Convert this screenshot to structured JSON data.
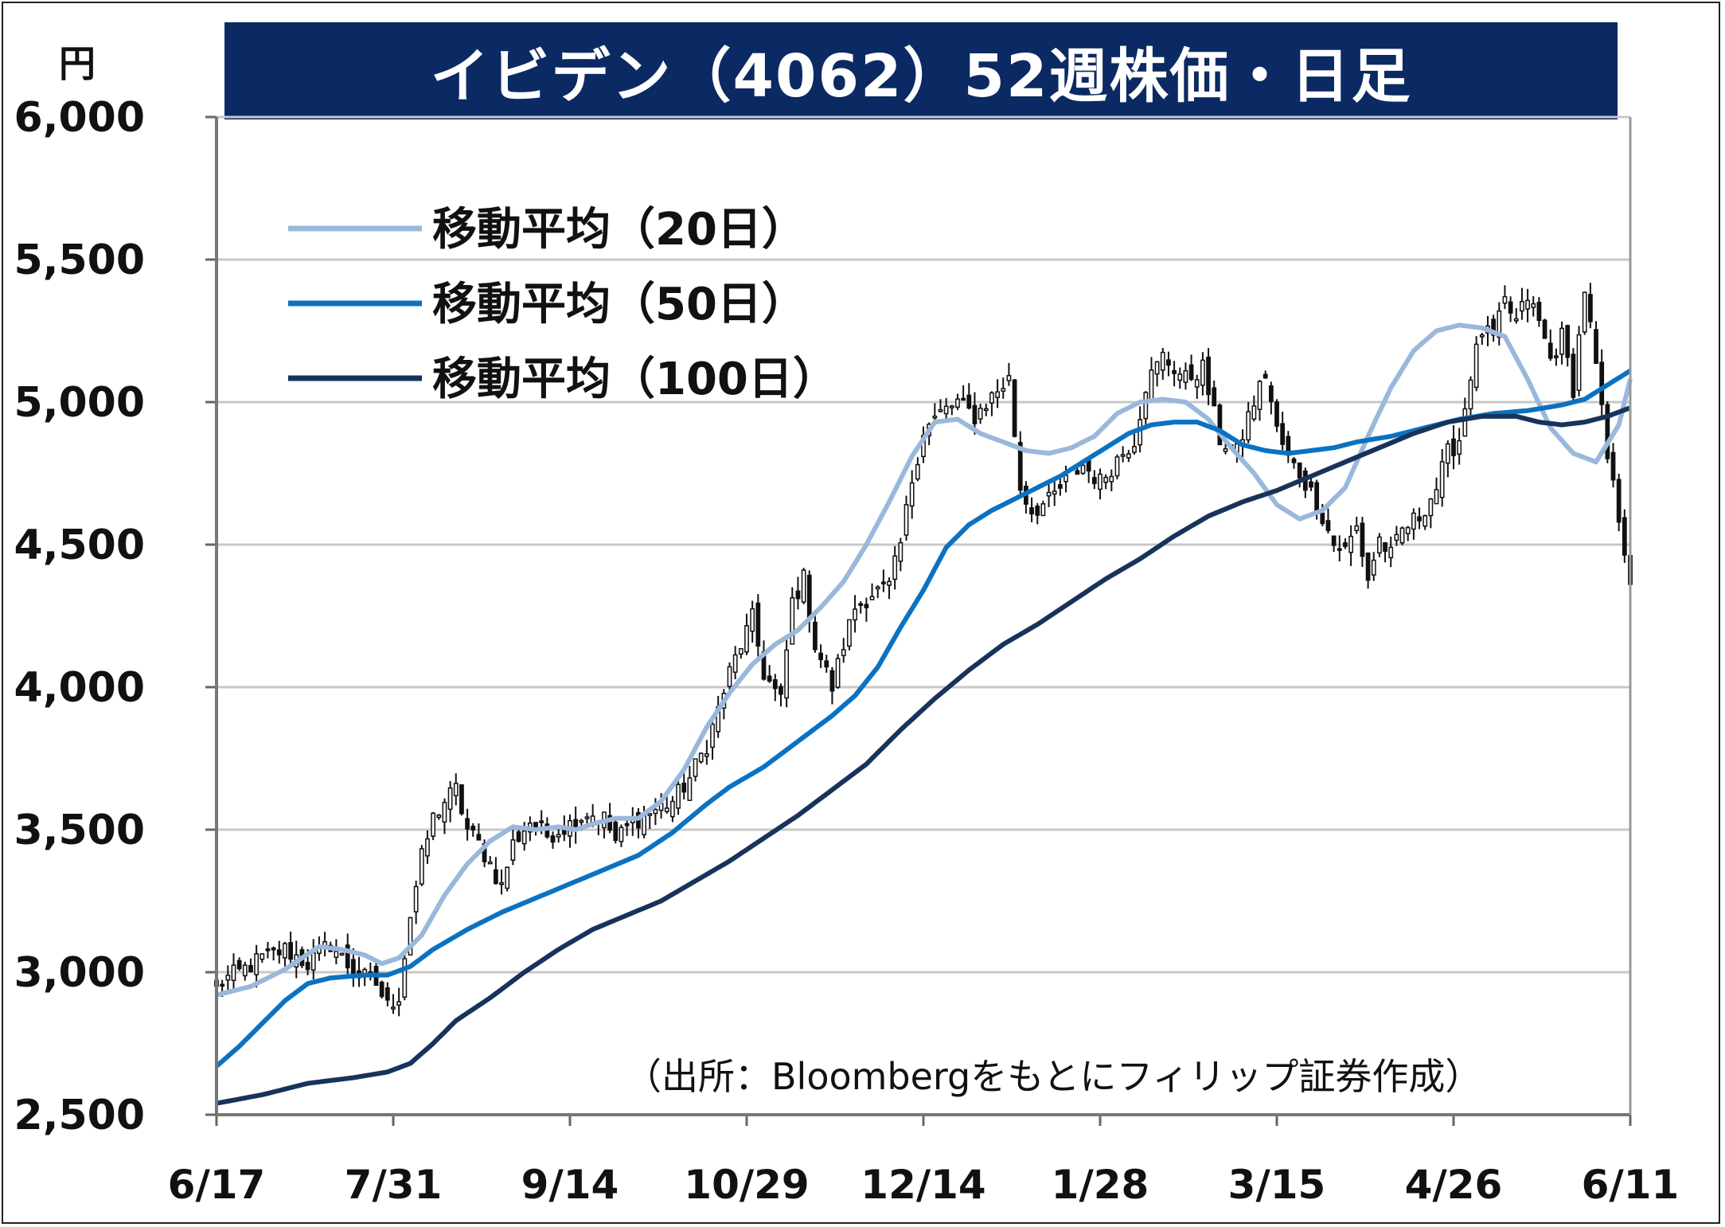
{
  "header": {
    "title": "イビデン（4062）52週株価・日足",
    "unit": "円"
  },
  "source": "（出所：Bloombergをもとにフィリップ証券作成）",
  "colors": {
    "title_bg": "#0b2a63",
    "ma20": "#9ab8dc",
    "ma50": "#0b72c2",
    "ma100": "#17335c",
    "grid": "#c8c8c8"
  },
  "chart_data": {
    "type": "candlestick",
    "ylim": [
      2500,
      6000
    ],
    "yticks": [
      2500,
      3000,
      3500,
      4000,
      4500,
      5000,
      5500,
      6000
    ],
    "ytick_labels": [
      "2,500",
      "3,000",
      "3,500",
      "4,000",
      "4,500",
      "5,000",
      "5,500",
      "6,000"
    ],
    "xticks": [
      {
        "label": "6/17",
        "index": 0
      },
      {
        "label": "7/31",
        "index": 31
      },
      {
        "label": "9/14",
        "index": 62
      },
      {
        "label": "10/29",
        "index": 93
      },
      {
        "label": "12/14",
        "index": 124
      },
      {
        "label": "1/28",
        "index": 155
      },
      {
        "label": "3/15",
        "index": 186
      },
      {
        "label": "4/26",
        "index": 217
      },
      {
        "label": "6/11",
        "index": 248
      }
    ],
    "n_days": 249,
    "legend": [
      {
        "key": "ma20",
        "label": "移動平均（20日）"
      },
      {
        "key": "ma50",
        "label": "移動平均（50日）"
      },
      {
        "key": "ma100",
        "label": "移動平均（100日）"
      }
    ],
    "close_anchors": [
      [
        0,
        2960
      ],
      [
        4,
        3000
      ],
      [
        8,
        3050
      ],
      [
        12,
        3080
      ],
      [
        16,
        3030
      ],
      [
        20,
        3100
      ],
      [
        24,
        3000
      ],
      [
        28,
        2960
      ],
      [
        30,
        2880
      ],
      [
        32,
        2920
      ],
      [
        34,
        3200
      ],
      [
        36,
        3400
      ],
      [
        38,
        3540
      ],
      [
        40,
        3600
      ],
      [
        42,
        3640
      ],
      [
        44,
        3500
      ],
      [
        46,
        3450
      ],
      [
        48,
        3380
      ],
      [
        50,
        3300
      ],
      [
        52,
        3450
      ],
      [
        55,
        3530
      ],
      [
        58,
        3480
      ],
      [
        62,
        3520
      ],
      [
        65,
        3560
      ],
      [
        68,
        3540
      ],
      [
        70,
        3460
      ],
      [
        73,
        3530
      ],
      [
        76,
        3560
      ],
      [
        80,
        3600
      ],
      [
        83,
        3680
      ],
      [
        86,
        3800
      ],
      [
        88,
        3920
      ],
      [
        90,
        4050
      ],
      [
        92,
        4150
      ],
      [
        94,
        4240
      ],
      [
        96,
        4050
      ],
      [
        99,
        3950
      ],
      [
        101,
        4300
      ],
      [
        103,
        4380
      ],
      [
        105,
        4150
      ],
      [
        108,
        4000
      ],
      [
        110,
        4150
      ],
      [
        112,
        4280
      ],
      [
        115,
        4330
      ],
      [
        118,
        4350
      ],
      [
        120,
        4500
      ],
      [
        122,
        4730
      ],
      [
        124,
        4900
      ],
      [
        127,
        4960
      ],
      [
        130,
        5000
      ],
      [
        133,
        4950
      ],
      [
        136,
        5020
      ],
      [
        139,
        5080
      ],
      [
        141,
        4700
      ],
      [
        143,
        4620
      ],
      [
        146,
        4650
      ],
      [
        149,
        4720
      ],
      [
        152,
        4780
      ],
      [
        155,
        4720
      ],
      [
        158,
        4800
      ],
      [
        161,
        4870
      ],
      [
        163,
        5060
      ],
      [
        166,
        5160
      ],
      [
        168,
        5120
      ],
      [
        170,
        5080
      ],
      [
        173,
        5120
      ],
      [
        176,
        4870
      ],
      [
        179,
        4820
      ],
      [
        181,
        4950
      ],
      [
        184,
        5100
      ],
      [
        186,
        4900
      ],
      [
        188,
        4800
      ],
      [
        190,
        4750
      ],
      [
        193,
        4650
      ],
      [
        196,
        4500
      ],
      [
        198,
        4480
      ],
      [
        200,
        4560
      ],
      [
        202,
        4380
      ],
      [
        204,
        4520
      ],
      [
        206,
        4460
      ],
      [
        208,
        4550
      ],
      [
        211,
        4600
      ],
      [
        214,
        4700
      ],
      [
        216,
        4820
      ],
      [
        218,
        4870
      ],
      [
        220,
        5100
      ],
      [
        222,
        5250
      ],
      [
        224,
        5220
      ],
      [
        226,
        5350
      ],
      [
        228,
        5280
      ],
      [
        230,
        5370
      ],
      [
        232,
        5280
      ],
      [
        234,
        5150
      ],
      [
        236,
        5230
      ],
      [
        238,
        5050
      ],
      [
        240,
        5400
      ],
      [
        242,
        5120
      ],
      [
        244,
        4800
      ],
      [
        246,
        4600
      ],
      [
        248,
        4380
      ]
    ],
    "ma20_anchors": [
      [
        0,
        2920
      ],
      [
        6,
        2950
      ],
      [
        12,
        3010
      ],
      [
        18,
        3090
      ],
      [
        22,
        3080
      ],
      [
        26,
        3060
      ],
      [
        29,
        3030
      ],
      [
        32,
        3050
      ],
      [
        36,
        3130
      ],
      [
        40,
        3270
      ],
      [
        44,
        3380
      ],
      [
        48,
        3460
      ],
      [
        52,
        3510
      ],
      [
        56,
        3500
      ],
      [
        60,
        3510
      ],
      [
        63,
        3500
      ],
      [
        66,
        3520
      ],
      [
        70,
        3540
      ],
      [
        74,
        3540
      ],
      [
        78,
        3600
      ],
      [
        82,
        3710
      ],
      [
        86,
        3860
      ],
      [
        90,
        3980
      ],
      [
        94,
        4080
      ],
      [
        98,
        4150
      ],
      [
        102,
        4200
      ],
      [
        106,
        4280
      ],
      [
        110,
        4370
      ],
      [
        114,
        4500
      ],
      [
        118,
        4650
      ],
      [
        122,
        4810
      ],
      [
        126,
        4930
      ],
      [
        130,
        4940
      ],
      [
        134,
        4890
      ],
      [
        138,
        4860
      ],
      [
        142,
        4830
      ],
      [
        146,
        4820
      ],
      [
        150,
        4840
      ],
      [
        154,
        4880
      ],
      [
        158,
        4960
      ],
      [
        162,
        5000
      ],
      [
        166,
        5010
      ],
      [
        170,
        5000
      ],
      [
        174,
        4940
      ],
      [
        178,
        4840
      ],
      [
        182,
        4750
      ],
      [
        186,
        4640
      ],
      [
        190,
        4590
      ],
      [
        194,
        4620
      ],
      [
        198,
        4700
      ],
      [
        202,
        4880
      ],
      [
        206,
        5050
      ],
      [
        210,
        5180
      ],
      [
        214,
        5250
      ],
      [
        218,
        5270
      ],
      [
        222,
        5260
      ],
      [
        226,
        5230
      ],
      [
        230,
        5080
      ],
      [
        234,
        4910
      ],
      [
        238,
        4820
      ],
      [
        242,
        4790
      ],
      [
        246,
        4920
      ],
      [
        248,
        5080
      ]
    ],
    "ma50_anchors": [
      [
        0,
        2670
      ],
      [
        4,
        2740
      ],
      [
        8,
        2820
      ],
      [
        12,
        2900
      ],
      [
        16,
        2960
      ],
      [
        20,
        2980
      ],
      [
        26,
        2990
      ],
      [
        30,
        2990
      ],
      [
        34,
        3020
      ],
      [
        38,
        3080
      ],
      [
        44,
        3150
      ],
      [
        50,
        3210
      ],
      [
        56,
        3260
      ],
      [
        62,
        3310
      ],
      [
        68,
        3360
      ],
      [
        74,
        3410
      ],
      [
        80,
        3490
      ],
      [
        86,
        3590
      ],
      [
        90,
        3650
      ],
      [
        96,
        3720
      ],
      [
        102,
        3810
      ],
      [
        108,
        3900
      ],
      [
        112,
        3970
      ],
      [
        116,
        4070
      ],
      [
        120,
        4210
      ],
      [
        124,
        4340
      ],
      [
        128,
        4490
      ],
      [
        132,
        4570
      ],
      [
        136,
        4620
      ],
      [
        140,
        4660
      ],
      [
        144,
        4700
      ],
      [
        148,
        4740
      ],
      [
        152,
        4790
      ],
      [
        156,
        4840
      ],
      [
        160,
        4890
      ],
      [
        164,
        4920
      ],
      [
        168,
        4930
      ],
      [
        172,
        4930
      ],
      [
        176,
        4900
      ],
      [
        180,
        4850
      ],
      [
        184,
        4830
      ],
      [
        188,
        4820
      ],
      [
        192,
        4830
      ],
      [
        196,
        4840
      ],
      [
        200,
        4860
      ],
      [
        206,
        4880
      ],
      [
        212,
        4910
      ],
      [
        218,
        4940
      ],
      [
        224,
        4960
      ],
      [
        230,
        4970
      ],
      [
        236,
        4990
      ],
      [
        240,
        5010
      ],
      [
        244,
        5060
      ],
      [
        248,
        5110
      ]
    ],
    "ma100_anchors": [
      [
        0,
        2540
      ],
      [
        8,
        2570
      ],
      [
        16,
        2610
      ],
      [
        24,
        2630
      ],
      [
        30,
        2650
      ],
      [
        34,
        2680
      ],
      [
        38,
        2750
      ],
      [
        42,
        2830
      ],
      [
        48,
        2910
      ],
      [
        54,
        3000
      ],
      [
        60,
        3080
      ],
      [
        66,
        3150
      ],
      [
        72,
        3200
      ],
      [
        78,
        3250
      ],
      [
        84,
        3320
      ],
      [
        90,
        3390
      ],
      [
        96,
        3470
      ],
      [
        102,
        3550
      ],
      [
        108,
        3640
      ],
      [
        114,
        3730
      ],
      [
        120,
        3850
      ],
      [
        126,
        3960
      ],
      [
        132,
        4060
      ],
      [
        138,
        4150
      ],
      [
        144,
        4220
      ],
      [
        150,
        4300
      ],
      [
        156,
        4380
      ],
      [
        162,
        4450
      ],
      [
        168,
        4530
      ],
      [
        174,
        4600
      ],
      [
        180,
        4650
      ],
      [
        186,
        4690
      ],
      [
        192,
        4740
      ],
      [
        198,
        4790
      ],
      [
        204,
        4840
      ],
      [
        210,
        4890
      ],
      [
        216,
        4930
      ],
      [
        222,
        4950
      ],
      [
        228,
        4950
      ],
      [
        232,
        4930
      ],
      [
        236,
        4920
      ],
      [
        240,
        4930
      ],
      [
        244,
        4950
      ],
      [
        248,
        4980
      ]
    ]
  }
}
